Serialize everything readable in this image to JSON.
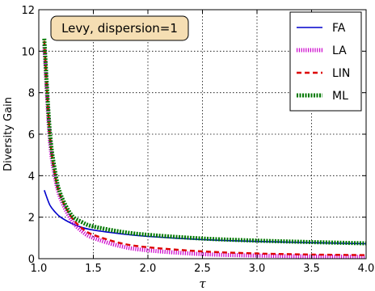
{
  "chart_data": {
    "type": "line",
    "title": "",
    "annotation": "Levy, dispersion=1",
    "xlabel": "τ",
    "ylabel": "Diversity Gain",
    "xlim": [
      1.0,
      4.0
    ],
    "ylim": [
      0,
      12
    ],
    "xticks": [
      "1.0",
      "1.5",
      "2.0",
      "2.5",
      "3.0",
      "3.5",
      "4.0"
    ],
    "yticks": [
      "0",
      "2",
      "4",
      "6",
      "8",
      "10",
      "12"
    ],
    "grid": true,
    "legend_position": "top-right",
    "x": [
      1.05,
      1.1,
      1.15,
      1.2,
      1.3,
      1.4,
      1.5,
      1.75,
      2.0,
      2.5,
      3.0,
      3.5,
      4.0
    ],
    "series": [
      {
        "name": "FA",
        "color": "#0000cc",
        "style": "solid",
        "values": [
          3.3,
          2.6,
          2.25,
          2.0,
          1.7,
          1.5,
          1.38,
          1.2,
          1.07,
          0.92,
          0.83,
          0.77,
          0.72
        ]
      },
      {
        "name": "LA",
        "color": "#cc00cc",
        "style": "dotted",
        "values": [
          10.3,
          5.8,
          3.9,
          2.9,
          1.85,
          1.3,
          1.0,
          0.6,
          0.4,
          0.22,
          0.15,
          0.11,
          0.09
        ]
      },
      {
        "name": "LIN",
        "color": "#dd0000",
        "style": "dashed",
        "values": [
          10.5,
          6.0,
          4.0,
          3.0,
          2.0,
          1.45,
          1.15,
          0.75,
          0.55,
          0.35,
          0.25,
          0.2,
          0.17
        ]
      },
      {
        "name": "ML",
        "color": "#007700",
        "style": "dashdot",
        "values": [
          10.6,
          6.2,
          4.2,
          3.1,
          2.1,
          1.75,
          1.55,
          1.3,
          1.15,
          0.97,
          0.87,
          0.8,
          0.74
        ]
      }
    ]
  }
}
